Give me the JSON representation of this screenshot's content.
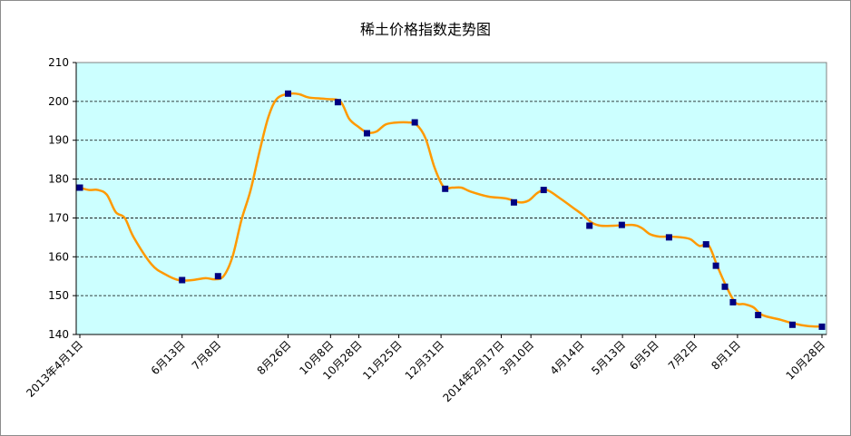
{
  "chart_data": {
    "type": "line",
    "title": "稀土价格指数走势图",
    "xlabel": "",
    "ylabel": "",
    "ylim": [
      140,
      210
    ],
    "yticks": [
      140,
      150,
      160,
      170,
      180,
      190,
      200,
      210
    ],
    "grid": "horizontal-dashed",
    "legend": "none",
    "colors": {
      "plot_bg": "#ccffff",
      "line": "#ff9900",
      "marker": "#000080",
      "grid": "#000000"
    },
    "x_tick_labels": [
      {
        "label": "2013年4月1日",
        "t": 0
      },
      {
        "label": "6月13日",
        "t": 0.1378
      },
      {
        "label": "7月8日",
        "t": 0.1862
      },
      {
        "label": "8月26日",
        "t": 0.2806
      },
      {
        "label": "10月8日",
        "t": 0.3378
      },
      {
        "label": "10月28日",
        "t": 0.376
      },
      {
        "label": "11月25日",
        "t": 0.4298
      },
      {
        "label": "12月31日",
        "t": 0.4867
      },
      {
        "label": "2014年2月17日",
        "t": 0.5678
      },
      {
        "label": "3月10日",
        "t": 0.6078
      },
      {
        "label": "4月14日",
        "t": 0.6755
      },
      {
        "label": "5月13日",
        "t": 0.7312
      },
      {
        "label": "6月5日",
        "t": 0.776
      },
      {
        "label": "7月2日",
        "t": 0.8281
      },
      {
        "label": "8月1日",
        "t": 0.8862
      },
      {
        "label": "10月28日",
        "t": 1.0
      }
    ],
    "line_points": [
      [
        0,
        177.8
      ],
      [
        0.0121,
        177.2
      ],
      [
        0.0242,
        177.2
      ],
      [
        0.0363,
        176
      ],
      [
        0.0484,
        171.5
      ],
      [
        0.0605,
        170
      ],
      [
        0.0726,
        165
      ],
      [
        0.0968,
        158
      ],
      [
        0.1149,
        155.5
      ],
      [
        0.1331,
        154
      ],
      [
        0.1512,
        154
      ],
      [
        0.1694,
        154.5
      ],
      [
        0.1815,
        154.2
      ],
      [
        0.1936,
        155
      ],
      [
        0.2057,
        160
      ],
      [
        0.2178,
        169.5
      ],
      [
        0.2299,
        177
      ],
      [
        0.242,
        187
      ],
      [
        0.2541,
        196
      ],
      [
        0.2662,
        200.8
      ],
      [
        0.2843,
        202
      ],
      [
        0.2964,
        201.8
      ],
      [
        0.3085,
        201
      ],
      [
        0.3327,
        200.6
      ],
      [
        0.3509,
        200
      ],
      [
        0.363,
        195.5
      ],
      [
        0.3751,
        193.5
      ],
      [
        0.3872,
        192
      ],
      [
        0.3993,
        192.2
      ],
      [
        0.4114,
        194
      ],
      [
        0.4235,
        194.5
      ],
      [
        0.4416,
        194.6
      ],
      [
        0.4537,
        194
      ],
      [
        0.4658,
        190.5
      ],
      [
        0.4779,
        183
      ],
      [
        0.49,
        178
      ],
      [
        0.5021,
        177.8
      ],
      [
        0.5142,
        177.8
      ],
      [
        0.5263,
        176.8
      ],
      [
        0.5505,
        175.5
      ],
      [
        0.5747,
        175
      ],
      [
        0.5929,
        174
      ],
      [
        0.605,
        174.5
      ],
      [
        0.6171,
        176.5
      ],
      [
        0.6292,
        177.2
      ],
      [
        0.6474,
        175
      ],
      [
        0.6655,
        172.5
      ],
      [
        0.6776,
        170.8
      ],
      [
        0.6897,
        168.8
      ],
      [
        0.7018,
        168
      ],
      [
        0.72,
        168
      ],
      [
        0.7442,
        168.2
      ],
      [
        0.7563,
        167.5
      ],
      [
        0.7684,
        165.8
      ],
      [
        0.7805,
        165.2
      ],
      [
        0.7926,
        165.2
      ],
      [
        0.8108,
        165
      ],
      [
        0.8229,
        164.5
      ],
      [
        0.835,
        162.8
      ],
      [
        0.8471,
        163
      ],
      [
        0.8592,
        157.5
      ],
      [
        0.8713,
        152.3
      ],
      [
        0.8834,
        148.2
      ],
      [
        0.8955,
        147.8
      ],
      [
        0.9076,
        147
      ],
      [
        0.9197,
        145
      ],
      [
        0.9439,
        143.8
      ],
      [
        0.9621,
        142.8
      ],
      [
        0.9802,
        142.2
      ],
      [
        1.0,
        142
      ]
    ],
    "markers": [
      [
        0,
        177.8
      ],
      [
        0.1378,
        154
      ],
      [
        0.1862,
        155
      ],
      [
        0.2806,
        202
      ],
      [
        0.3477,
        199.8
      ],
      [
        0.3869,
        191.8
      ],
      [
        0.4513,
        194.6
      ],
      [
        0.4923,
        177.5
      ],
      [
        0.5849,
        174
      ],
      [
        0.625,
        177.2
      ],
      [
        0.6867,
        168
      ],
      [
        0.7303,
        168.2
      ],
      [
        0.7939,
        165
      ],
      [
        0.8438,
        163.2
      ],
      [
        0.8571,
        157.7
      ],
      [
        0.8692,
        152.3
      ],
      [
        0.8801,
        148.3
      ],
      [
        0.914,
        145
      ],
      [
        0.9602,
        142.5
      ],
      [
        1.0,
        142
      ]
    ]
  }
}
